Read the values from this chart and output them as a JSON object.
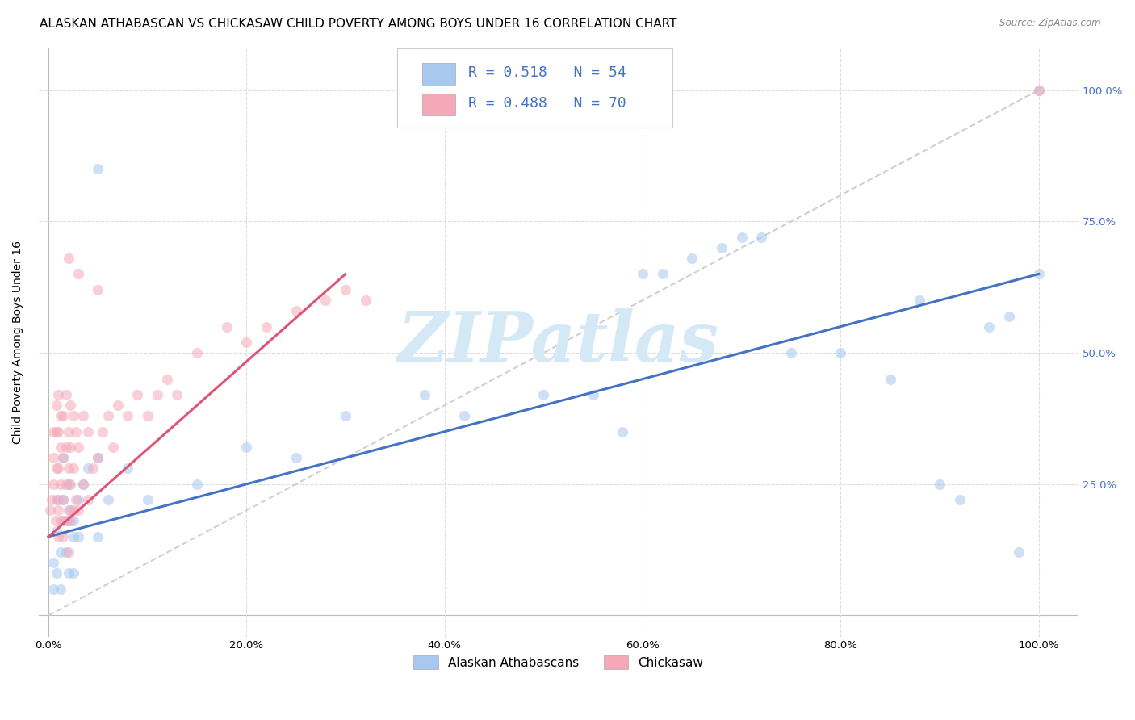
{
  "title": "ALASKAN ATHABASCAN VS CHICKASAW CHILD POVERTY AMONG BOYS UNDER 16 CORRELATION CHART",
  "source": "Source: ZipAtlas.com",
  "ylabel": "Child Poverty Among Boys Under 16",
  "r_blue": 0.518,
  "n_blue": 54,
  "r_pink": 0.488,
  "n_pink": 70,
  "legend_labels": [
    "Alaskan Athabascans",
    "Chickasaw"
  ],
  "blue_scatter_color": "#A8C8F0",
  "pink_scatter_color": "#F5A8B8",
  "blue_line_color": "#4472C4",
  "pink_line_color": "#E05575",
  "diagonal_color": "#D0D0D0",
  "watermark_text": "ZIPatlas",
  "watermark_color": "#D5E8F5",
  "grid_color": "#DDDDDD",
  "background_color": "#FFFFFF",
  "title_fontsize": 11.0,
  "label_fontsize": 10,
  "tick_fontsize": 9.5,
  "right_tick_color": "#4472C4",
  "scatter_size": 90,
  "scatter_alpha": 0.55,
  "blue_x": [
    0.005,
    0.008,
    0.01,
    0.012,
    0.015,
    0.018,
    0.02,
    0.022,
    0.025,
    0.005,
    0.008,
    0.012,
    0.015,
    0.02,
    0.025,
    0.03,
    0.015,
    0.02,
    0.025,
    0.03,
    0.035,
    0.04,
    0.05,
    0.06,
    0.05,
    0.08,
    0.1,
    0.15,
    0.2,
    0.25,
    0.3,
    0.38,
    0.42,
    0.5,
    0.55,
    0.58,
    0.6,
    0.62,
    0.65,
    0.68,
    0.7,
    0.72,
    0.75,
    0.8,
    0.85,
    0.88,
    0.9,
    0.92,
    0.95,
    0.97,
    0.98,
    1.0,
    0.05,
    1.0
  ],
  "blue_y": [
    0.1,
    0.16,
    0.22,
    0.05,
    0.18,
    0.12,
    0.08,
    0.2,
    0.15,
    0.05,
    0.08,
    0.12,
    0.22,
    0.18,
    0.08,
    0.22,
    0.3,
    0.25,
    0.18,
    0.15,
    0.25,
    0.28,
    0.3,
    0.22,
    0.15,
    0.28,
    0.22,
    0.25,
    0.32,
    0.3,
    0.38,
    0.42,
    0.38,
    0.42,
    0.42,
    0.35,
    0.65,
    0.65,
    0.68,
    0.7,
    0.72,
    0.72,
    0.5,
    0.5,
    0.45,
    0.6,
    0.25,
    0.22,
    0.55,
    0.57,
    0.12,
    0.65,
    0.85,
    1.0
  ],
  "pink_x": [
    0.002,
    0.003,
    0.005,
    0.005,
    0.005,
    0.007,
    0.008,
    0.008,
    0.008,
    0.008,
    0.01,
    0.01,
    0.01,
    0.01,
    0.01,
    0.012,
    0.012,
    0.012,
    0.012,
    0.015,
    0.015,
    0.015,
    0.015,
    0.018,
    0.018,
    0.018,
    0.018,
    0.02,
    0.02,
    0.02,
    0.02,
    0.022,
    0.022,
    0.022,
    0.022,
    0.025,
    0.025,
    0.025,
    0.028,
    0.028,
    0.03,
    0.03,
    0.035,
    0.035,
    0.04,
    0.04,
    0.045,
    0.05,
    0.055,
    0.06,
    0.065,
    0.07,
    0.08,
    0.09,
    0.1,
    0.11,
    0.12,
    0.13,
    0.15,
    0.18,
    0.2,
    0.22,
    0.25,
    0.28,
    0.3,
    0.32,
    0.02,
    0.03,
    0.05,
    1.0
  ],
  "pink_y": [
    0.2,
    0.22,
    0.25,
    0.3,
    0.35,
    0.18,
    0.22,
    0.28,
    0.35,
    0.4,
    0.15,
    0.2,
    0.28,
    0.35,
    0.42,
    0.18,
    0.25,
    0.32,
    0.38,
    0.15,
    0.22,
    0.3,
    0.38,
    0.18,
    0.25,
    0.32,
    0.42,
    0.12,
    0.2,
    0.28,
    0.35,
    0.18,
    0.25,
    0.32,
    0.4,
    0.2,
    0.28,
    0.38,
    0.22,
    0.35,
    0.2,
    0.32,
    0.25,
    0.38,
    0.22,
    0.35,
    0.28,
    0.3,
    0.35,
    0.38,
    0.32,
    0.4,
    0.38,
    0.42,
    0.38,
    0.42,
    0.45,
    0.42,
    0.5,
    0.55,
    0.52,
    0.55,
    0.58,
    0.6,
    0.62,
    0.6,
    0.68,
    0.65,
    0.62,
    1.0
  ],
  "xlim": [
    0.0,
    1.0
  ],
  "ylim": [
    0.0,
    1.0
  ]
}
